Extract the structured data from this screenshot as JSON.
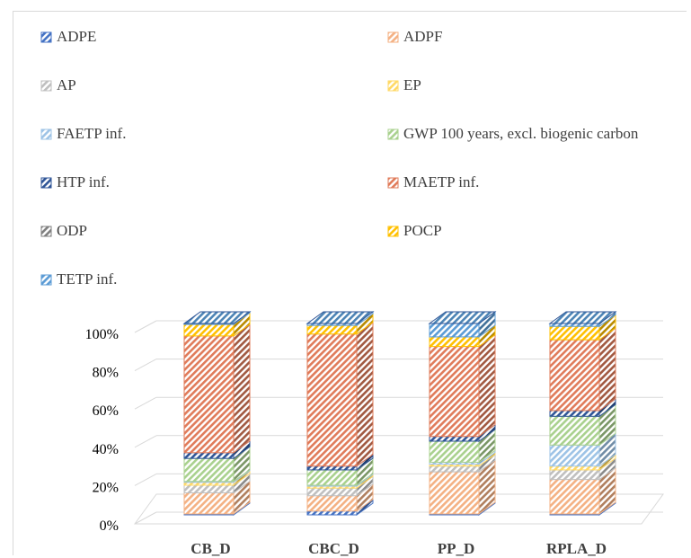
{
  "chart_data": {
    "type": "bar",
    "stacked": true,
    "percent_stacked": true,
    "three_d": true,
    "title": "",
    "xlabel": "",
    "ylabel": "",
    "ylim": [
      0,
      100
    ],
    "y_ticks": [
      "0%",
      "20%",
      "40%",
      "60%",
      "80%",
      "100%"
    ],
    "y_tick_values": [
      0,
      20,
      40,
      60,
      80,
      100
    ],
    "grid": true,
    "legend_position": "top",
    "categories": [
      "CB_D",
      "CBC_D",
      "PP_D",
      "RPLA_D"
    ],
    "series": [
      {
        "name": "ADPE",
        "color": "#4472C4",
        "values": [
          0.5,
          2,
          0.5,
          0.5
        ]
      },
      {
        "name": "ADPF",
        "color": "#F4B183",
        "values": [
          11,
          8,
          22,
          18
        ]
      },
      {
        "name": "AP",
        "color": "#BFBFBF",
        "values": [
          4,
          4,
          3,
          5
        ]
      },
      {
        "name": "EP",
        "color": "#FFD966",
        "values": [
          1.5,
          1,
          1,
          2
        ]
      },
      {
        "name": "FAETP inf.",
        "color": "#9DC3E6",
        "values": [
          0.5,
          0.5,
          1,
          11
        ]
      },
      {
        "name": "GWP 100 years, excl. biogenic carbon",
        "color": "#A9D18E",
        "values": [
          12,
          8,
          11,
          15
        ]
      },
      {
        "name": "HTP inf.",
        "color": "#2F5597",
        "values": [
          3,
          2,
          2.5,
          3
        ]
      },
      {
        "name": "MAETP inf.",
        "color": "#E07B5A",
        "values": [
          61,
          69,
          47,
          37
        ]
      },
      {
        "name": "ODP",
        "color": "#7F7F7F",
        "values": [
          0,
          0,
          0,
          0
        ]
      },
      {
        "name": "POCP",
        "color": "#FFC000",
        "values": [
          6,
          4.5,
          5,
          7
        ]
      },
      {
        "name": "TETP inf.",
        "color": "#5B9BD5",
        "values": [
          0.5,
          1,
          7,
          1.5
        ]
      }
    ]
  }
}
